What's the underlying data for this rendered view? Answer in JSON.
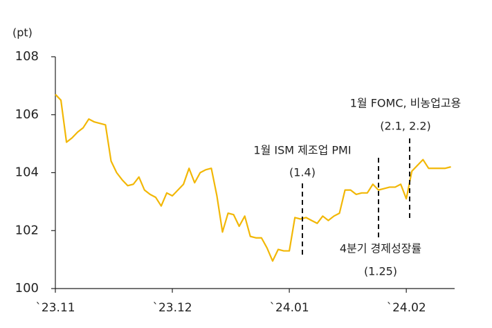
{
  "chart_data": {
    "type": "line",
    "y_label": "(pt)",
    "categories": [
      "`23.11",
      null,
      null,
      null,
      null,
      null,
      null,
      null,
      null,
      null,
      null,
      null,
      null,
      null,
      null,
      null,
      null,
      null,
      null,
      null,
      null,
      "`23.12",
      null,
      null,
      null,
      null,
      null,
      null,
      null,
      null,
      null,
      null,
      null,
      null,
      null,
      null,
      null,
      null,
      null,
      null,
      null,
      null,
      "`24.01",
      null,
      null,
      null,
      null,
      null,
      null,
      null,
      null,
      null,
      null,
      null,
      null,
      null,
      null,
      null,
      null,
      null,
      null,
      null,
      null,
      "`24.02",
      null,
      null,
      null,
      null,
      null,
      null,
      null,
      null
    ],
    "series": [
      {
        "color": "#f2b705",
        "values": [
          106.7,
          106.5,
          105.05,
          105.2,
          105.4,
          105.55,
          105.85,
          105.75,
          105.7,
          105.65,
          104.4,
          104.0,
          103.75,
          103.55,
          103.6,
          103.85,
          103.4,
          103.25,
          103.15,
          102.85,
          103.3,
          103.2,
          103.4,
          103.6,
          104.15,
          103.65,
          104.0,
          104.1,
          104.15,
          103.2,
          101.95,
          102.6,
          102.55,
          102.15,
          102.5,
          101.8,
          101.75,
          101.75,
          101.4,
          100.95,
          101.35,
          101.3,
          101.3,
          102.45,
          102.4,
          102.45,
          102.35,
          102.25,
          102.5,
          102.35,
          102.5,
          102.6,
          103.4,
          103.4,
          103.25,
          103.3,
          103.3,
          103.6,
          103.4,
          103.45,
          103.5,
          103.5,
          103.6,
          103.1,
          104.05,
          104.25,
          104.45,
          104.15,
          104.15,
          104.15,
          104.15,
          104.2
        ]
      }
    ],
    "ylim": [
      100,
      108
    ],
    "yticks": [
      100,
      102,
      104,
      106,
      108
    ],
    "annotations": [
      {
        "title": "1월 ISM 제조업 PMI",
        "value": "(1.4)"
      },
      {
        "title": "4분기 경제성장률",
        "value": "(1.25)"
      },
      {
        "title": "1월 FOMC, 비농업고용",
        "value": "(2.1, 2.2)"
      }
    ]
  }
}
